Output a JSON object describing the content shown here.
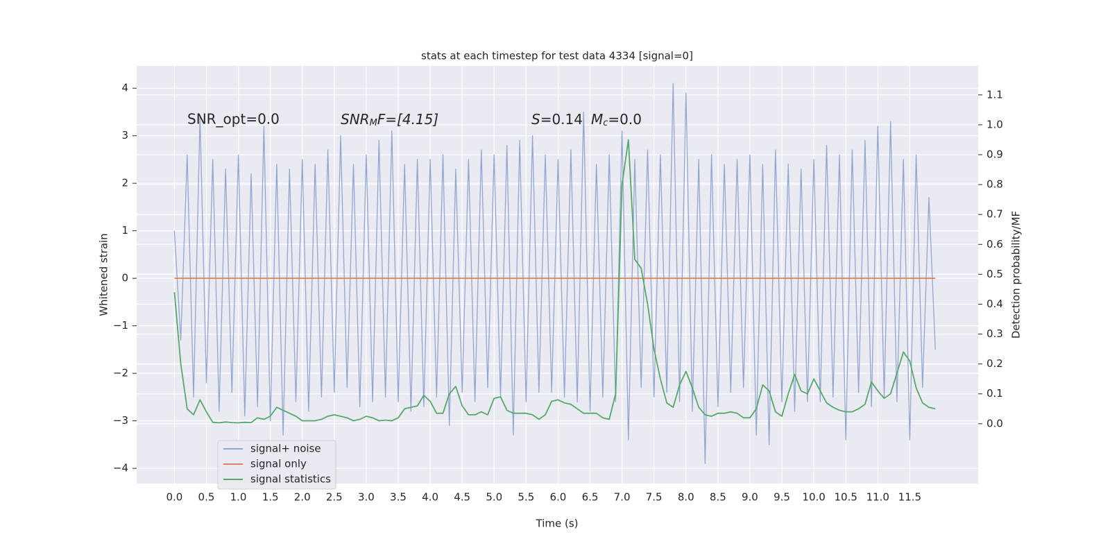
{
  "chart_data": {
    "type": "line",
    "title": "stats at each timestep for test data 4334 [signal=0]",
    "xlabel": "Time (s)",
    "ylabel": "Whitened strain",
    "y2label": "Detection probability/MF",
    "annotations": {
      "snr_opt": "SNR_opt=0.0",
      "snr_mf": [
        "SNR",
        "M",
        "F=[4.15]"
      ],
      "stats": [
        "S",
        "=0.14",
        "M",
        "c",
        "=0.0"
      ]
    },
    "x": [
      0,
      0.1,
      0.2,
      0.3,
      0.4,
      0.5,
      0.6,
      0.7,
      0.8,
      0.9,
      1.0,
      1.1,
      1.2,
      1.3,
      1.4,
      1.5,
      1.6,
      1.7,
      1.8,
      1.9,
      2.0,
      2.1,
      2.2,
      2.3,
      2.4,
      2.5,
      2.6,
      2.7,
      2.8,
      2.9,
      3.0,
      3.1,
      3.2,
      3.3,
      3.4,
      3.5,
      3.6,
      3.7,
      3.8,
      3.9,
      4.0,
      4.1,
      4.2,
      4.3,
      4.4,
      4.5,
      4.6,
      4.7,
      4.8,
      4.9,
      5.0,
      5.1,
      5.2,
      5.3,
      5.4,
      5.5,
      5.6,
      5.7,
      5.8,
      5.9,
      6.0,
      6.1,
      6.2,
      6.3,
      6.4,
      6.5,
      6.6,
      6.7,
      6.8,
      6.9,
      7.0,
      7.1,
      7.2,
      7.3,
      7.4,
      7.5,
      7.6,
      7.7,
      7.8,
      7.9,
      8.0,
      8.1,
      8.2,
      8.3,
      8.4,
      8.5,
      8.6,
      8.7,
      8.8,
      8.9,
      9.0,
      9.1,
      9.2,
      9.3,
      9.4,
      9.5,
      9.6,
      9.7,
      9.8,
      9.9,
      10.0,
      10.1,
      10.2,
      10.3,
      10.4,
      10.5,
      10.6,
      10.7,
      10.8,
      10.9,
      11.0,
      11.1,
      11.2,
      11.3,
      11.4,
      11.5,
      11.6,
      11.7,
      11.8,
      11.9
    ],
    "series": [
      {
        "name": "signal+ noise",
        "color": "#92a6cf",
        "axis": "y",
        "values": [
          1.0,
          -1.3,
          2.6,
          -2.5,
          3.4,
          -2.2,
          2.5,
          -2.8,
          2.3,
          -2.4,
          2.6,
          -2.9,
          2.2,
          -2.7,
          3.2,
          -3.0,
          2.4,
          -3.3,
          2.3,
          -2.6,
          2.5,
          -2.8,
          2.4,
          -2.5,
          2.7,
          -2.4,
          3.0,
          -2.3,
          2.4,
          -2.7,
          2.6,
          -2.6,
          2.9,
          -2.5,
          3.1,
          -2.6,
          2.4,
          -2.8,
          2.5,
          -2.7,
          2.5,
          -2.5,
          2.6,
          -3.1,
          2.3,
          -2.4,
          2.5,
          -2.6,
          2.7,
          -2.3,
          2.6,
          -2.5,
          2.8,
          -3.3,
          2.9,
          -2.6,
          3.0,
          -2.4,
          2.6,
          -2.4,
          2.5,
          -2.5,
          2.7,
          -2.6,
          3.5,
          -2.8,
          2.4,
          -2.5,
          2.6,
          -2.6,
          3.1,
          -3.4,
          2.5,
          -2.3,
          2.7,
          -2.5,
          2.6,
          -2.4,
          4.1,
          -2.6,
          3.9,
          -2.8,
          2.5,
          -3.9,
          2.6,
          -2.7,
          2.4,
          -2.4,
          2.5,
          -2.3,
          2.6,
          -3.3,
          2.4,
          -3.5,
          2.7,
          -2.6,
          2.4,
          -2.8,
          2.3,
          -2.6,
          2.5,
          -2.6,
          2.8,
          -2.5,
          2.6,
          -3.4,
          2.7,
          -2.4,
          2.9,
          -2.7,
          3.2,
          -2.5,
          3.3,
          -2.6,
          2.5,
          -3.4,
          2.6,
          -2.3,
          1.7,
          -1.5
        ]
      },
      {
        "name": "signal only",
        "color": "#dd8452",
        "axis": "y",
        "values": [
          0,
          0,
          0,
          0,
          0,
          0,
          0,
          0,
          0,
          0,
          0,
          0,
          0,
          0,
          0,
          0,
          0,
          0,
          0,
          0,
          0,
          0,
          0,
          0,
          0,
          0,
          0,
          0,
          0,
          0,
          0,
          0,
          0,
          0,
          0,
          0,
          0,
          0,
          0,
          0,
          0,
          0,
          0,
          0,
          0,
          0,
          0,
          0,
          0,
          0,
          0,
          0,
          0,
          0,
          0,
          0,
          0,
          0,
          0,
          0,
          0,
          0,
          0,
          0,
          0,
          0,
          0,
          0,
          0,
          0,
          0,
          0,
          0,
          0,
          0,
          0,
          0,
          0,
          0,
          0,
          0,
          0,
          0,
          0,
          0,
          0,
          0,
          0,
          0,
          0,
          0,
          0,
          0,
          0,
          0,
          0,
          0,
          0,
          0,
          0,
          0,
          0,
          0,
          0,
          0,
          0,
          0,
          0,
          0,
          0,
          0,
          0,
          0,
          0,
          0,
          0,
          0,
          0,
          0,
          0
        ]
      },
      {
        "name": "signal statistics",
        "color": "#55a868",
        "axis": "y2",
        "values": [
          0.44,
          0.2,
          0.05,
          0.03,
          0.08,
          0.04,
          0.005,
          0.003,
          0.006,
          0.004,
          0.003,
          0.005,
          0.004,
          0.02,
          0.015,
          0.025,
          0.055,
          0.045,
          0.035,
          0.025,
          0.01,
          0.01,
          0.01,
          0.015,
          0.025,
          0.03,
          0.025,
          0.02,
          0.01,
          0.015,
          0.025,
          0.02,
          0.01,
          0.012,
          0.01,
          0.02,
          0.05,
          0.055,
          0.06,
          0.095,
          0.075,
          0.035,
          0.035,
          0.1,
          0.125,
          0.06,
          0.03,
          0.03,
          0.04,
          0.03,
          0.085,
          0.09,
          0.045,
          0.035,
          0.035,
          0.035,
          0.03,
          0.015,
          0.03,
          0.075,
          0.08,
          0.07,
          0.065,
          0.05,
          0.035,
          0.035,
          0.035,
          0.02,
          0.015,
          0.1,
          0.8,
          0.95,
          0.55,
          0.52,
          0.4,
          0.25,
          0.15,
          0.07,
          0.055,
          0.13,
          0.175,
          0.12,
          0.055,
          0.03,
          0.025,
          0.035,
          0.035,
          0.04,
          0.035,
          0.02,
          0.02,
          0.05,
          0.13,
          0.11,
          0.04,
          0.025,
          0.1,
          0.165,
          0.11,
          0.1,
          0.15,
          0.11,
          0.07,
          0.055,
          0.045,
          0.04,
          0.04,
          0.05,
          0.065,
          0.14,
          0.11,
          0.085,
          0.1,
          0.17,
          0.24,
          0.21,
          0.12,
          0.07,
          0.055,
          0.05
        ]
      }
    ],
    "xlim": [
      -0.59,
      12.57
    ],
    "xticks": [
      {
        "value": 0,
        "label": "0.0"
      },
      0.5,
      {
        "value": 1,
        "label": "1.0"
      },
      1.5,
      {
        "value": 2,
        "label": "2.0"
      },
      2.5,
      {
        "value": 3,
        "label": "3.0"
      },
      3.5,
      {
        "value": 4,
        "label": "4.0"
      },
      4.5,
      {
        "value": 5,
        "label": "5.0"
      },
      5.5,
      {
        "value": 6,
        "label": "6.0"
      },
      6.5,
      {
        "value": 7,
        "label": "7.0"
      },
      7.5,
      {
        "value": 8,
        "label": "8.0"
      },
      8.5,
      {
        "value": 9,
        "label": "9.0"
      },
      9.5,
      {
        "value": 10,
        "label": "10.0"
      },
      10.5,
      {
        "value": 11,
        "label": "11.0"
      },
      11.5
    ],
    "ylim": [
      -4.32,
      4.47
    ],
    "yticks": [
      {
        "value": -4,
        "label": "−4"
      },
      {
        "value": -3,
        "label": "−3"
      },
      {
        "value": -2,
        "label": "−2"
      },
      {
        "value": -1,
        "label": "−1"
      },
      0,
      1,
      2,
      3,
      4
    ],
    "y2lim": [
      -0.2,
      1.197
    ],
    "y2ticks": [
      {
        "value": 0,
        "label": "0.0"
      },
      0.1,
      0.2,
      0.3,
      0.4,
      0.5,
      0.6,
      0.7,
      0.8,
      0.9,
      {
        "value": 1,
        "label": "1.0"
      },
      1.1
    ],
    "grid": true,
    "legend": "lower left"
  }
}
